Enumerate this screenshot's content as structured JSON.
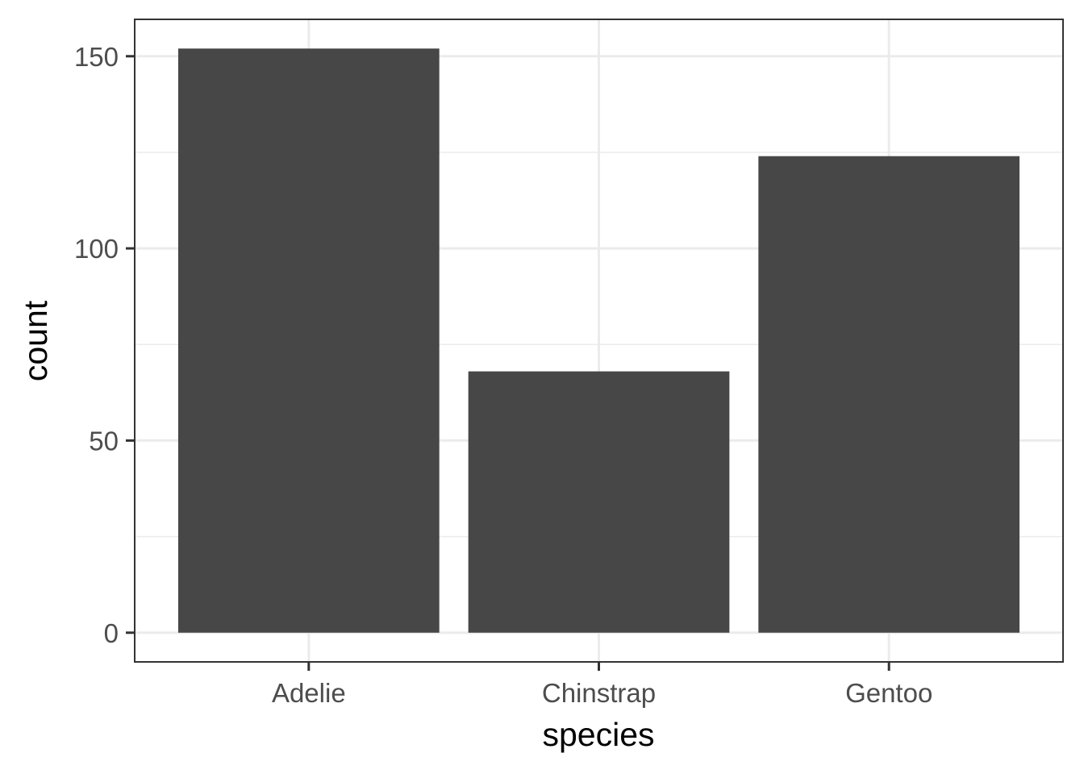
{
  "chart_data": {
    "type": "bar",
    "categories": [
      "Adelie",
      "Chinstrap",
      "Gentoo"
    ],
    "values": [
      152,
      68,
      124
    ],
    "title": "",
    "xlabel": "species",
    "ylabel": "count",
    "ylim": [
      -7.6,
      159.6
    ],
    "yticks": [
      0,
      50,
      100,
      150
    ],
    "yticks_minor": [
      25,
      75,
      125
    ],
    "grid": true,
    "legend": "none",
    "colors": {
      "bar": "#474747",
      "panel_background": "#ffffff",
      "grid_major": "#ebebeb",
      "grid_minor": "#ebebeb",
      "panel_border": "#333333",
      "tick_label": "#4d4d4d",
      "axis_title": "#000000"
    }
  }
}
